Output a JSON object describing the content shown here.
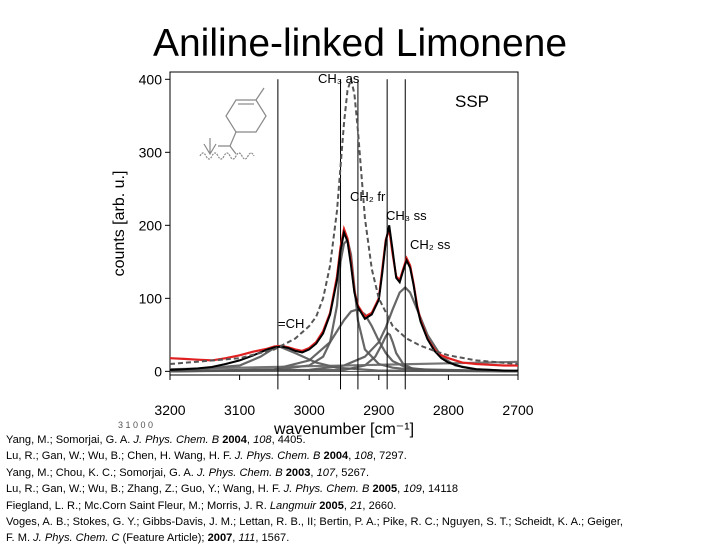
{
  "slide": {
    "title": "Aniline-linked Limonene",
    "polarization_label": "SSP",
    "stray_text": "3 1 0 0 0"
  },
  "chart_data": {
    "type": "line",
    "title": "",
    "xlabel": "wavenumber [cm⁻¹]",
    "ylabel": "counts [arb. u.]",
    "xlim": [
      3200,
      2700
    ],
    "ylim": [
      -5,
      410
    ],
    "x_reversed": true,
    "grid": false,
    "x_ticks": [
      3200,
      3100,
      3000,
      2900,
      2800,
      2700
    ],
    "y_ticks": [
      0,
      100,
      200,
      300,
      400
    ],
    "colors": {
      "data": "#e02020",
      "fit": "#000000",
      "components": "#555555",
      "nonresonant": "#666666",
      "marker_lines": "#000000"
    },
    "peaks": [
      {
        "label": "=CH",
        "position": 3045,
        "amplitude": 35,
        "width": 35
      },
      {
        "label": "CH2 fr",
        "position": 2945,
        "amplitude": 180,
        "width": 14
      },
      {
        "label": "CH3 as",
        "position": 2940,
        "amplitude": 400,
        "width": 22
      },
      {
        "label": "CH3 ss",
        "position": 2885,
        "amplitude": 170,
        "width": 7
      },
      {
        "label": "CH2 ss",
        "position": 2860,
        "amplitude": 148,
        "width": 14
      }
    ],
    "annotations": [
      {
        "text": "CH₃ as",
        "x": 2940
      },
      {
        "text": "CH₂ fr",
        "x": 2945
      },
      {
        "text": "CH₃ ss",
        "x": 2885
      },
      {
        "text": "CH₂ ss",
        "x": 2860
      },
      {
        "text": "=CH",
        "x": 3045
      }
    ],
    "marker_lines": [
      3045,
      2955,
      2930,
      2888,
      2862
    ],
    "series": [
      {
        "role": "data",
        "x": [
          3200,
          3180,
          3160,
          3140,
          3120,
          3100,
          3080,
          3060,
          3050,
          3040,
          3030,
          3020,
          3010,
          3000,
          2990,
          2980,
          2970,
          2960,
          2955,
          2950,
          2945,
          2940,
          2935,
          2930,
          2920,
          2910,
          2900,
          2895,
          2890,
          2885,
          2880,
          2875,
          2870,
          2865,
          2860,
          2855,
          2850,
          2845,
          2840,
          2830,
          2820,
          2810,
          2800,
          2780,
          2760,
          2740,
          2720,
          2700
        ],
        "y": [
          18,
          17,
          16,
          15,
          18,
          22,
          27,
          31,
          34,
          35,
          33,
          30,
          28,
          32,
          40,
          55,
          80,
          130,
          170,
          195,
          182,
          150,
          110,
          90,
          75,
          80,
          100,
          140,
          180,
          195,
          160,
          130,
          125,
          140,
          155,
          145,
          120,
          90,
          70,
          45,
          30,
          22,
          18,
          12,
          10,
          9,
          8,
          8
        ]
      },
      {
        "role": "fit",
        "x": [
          3200,
          3180,
          3160,
          3140,
          3120,
          3100,
          3080,
          3060,
          3050,
          3040,
          3030,
          3020,
          3010,
          3000,
          2990,
          2980,
          2970,
          2960,
          2955,
          2950,
          2945,
          2940,
          2935,
          2930,
          2920,
          2910,
          2900,
          2895,
          2890,
          2885,
          2880,
          2875,
          2870,
          2865,
          2860,
          2855,
          2850,
          2845,
          2840,
          2830,
          2820,
          2810,
          2800,
          2780,
          2760,
          2740,
          2720,
          2700
        ],
        "y": [
          2,
          3,
          4,
          6,
          10,
          15,
          22,
          30,
          33,
          34,
          32,
          28,
          26,
          30,
          38,
          52,
          78,
          125,
          165,
          190,
          178,
          145,
          108,
          88,
          72,
          78,
          98,
          135,
          178,
          200,
          165,
          128,
          122,
          138,
          152,
          142,
          118,
          88,
          68,
          44,
          28,
          18,
          12,
          6,
          3,
          2,
          1,
          1
        ]
      },
      {
        "role": "CH3 as",
        "x": [
          3200,
          3100,
          3050,
          3020,
          3000,
          2990,
          2980,
          2970,
          2960,
          2955,
          2950,
          2945,
          2940,
          2935,
          2930,
          2925,
          2920,
          2910,
          2900,
          2880,
          2860,
          2840,
          2820,
          2800,
          2760,
          2700
        ],
        "y": [
          10,
          18,
          30,
          45,
          62,
          75,
          100,
          145,
          220,
          280,
          340,
          385,
          400,
          380,
          330,
          270,
          210,
          140,
          100,
          62,
          45,
          35,
          28,
          22,
          15,
          10
        ]
      }
    ],
    "components": [
      {
        "name": "=CH",
        "x": [
          3200,
          3100,
          3070,
          3050,
          3045,
          3040,
          3020,
          2990,
          2960,
          2900,
          2700
        ],
        "y": [
          0,
          8,
          20,
          32,
          34,
          33,
          25,
          12,
          5,
          1,
          0
        ]
      },
      {
        "name": "CH2 fr",
        "x": [
          3200,
          3050,
          3000,
          2980,
          2970,
          2960,
          2955,
          2950,
          2945,
          2940,
          2935,
          2930,
          2920,
          2900,
          2880,
          2850,
          2700
        ],
        "y": [
          0,
          2,
          8,
          20,
          40,
          90,
          150,
          175,
          180,
          160,
          115,
          70,
          30,
          10,
          5,
          2,
          0
        ]
      },
      {
        "name": "CH2 3",
        "x": [
          3200,
          3050,
          3000,
          2970,
          2950,
          2940,
          2930,
          2920,
          2910,
          2900,
          2890,
          2880,
          2860,
          2820,
          2700
        ],
        "y": [
          0,
          3,
          15,
          40,
          70,
          82,
          85,
          78,
          62,
          42,
          25,
          14,
          5,
          1,
          0
        ]
      },
      {
        "name": "CH3 ss",
        "x": [
          3200,
          2950,
          2920,
          2905,
          2895,
          2890,
          2887,
          2884,
          2880,
          2875,
          2865,
          2850,
          2700
        ],
        "y": [
          0,
          2,
          8,
          20,
          38,
          48,
          52,
          50,
          40,
          25,
          10,
          3,
          0
        ]
      },
      {
        "name": "CH2 ss",
        "x": [
          3200,
          3000,
          2950,
          2920,
          2900,
          2890,
          2880,
          2870,
          2862,
          2855,
          2845,
          2830,
          2810,
          2790,
          2760,
          2700
        ],
        "y": [
          0,
          2,
          8,
          20,
          40,
          60,
          85,
          108,
          115,
          108,
          85,
          50,
          20,
          8,
          3,
          0
        ]
      },
      {
        "name": "nonresonant",
        "x": [
          3200,
          3100,
          3000,
          2900,
          2800,
          2700
        ],
        "y": [
          3,
          5,
          7,
          9,
          11,
          13
        ]
      }
    ]
  },
  "references": [
    {
      "authors": "Yang, M.; Somorjai, G. A. ",
      "journal": "J. Phys. Chem. B",
      "year": "2004",
      "volume": "108",
      "pages": "4405."
    },
    {
      "authors": "Lu, R.; Gan, W.; Wu, B.; Chen, H. Wang, H. F.  ",
      "journal": "J. Phys. Chem. B",
      "year": "2004",
      "volume": "108",
      "pages": "7297."
    },
    {
      "authors": "Yang, M.; Chou, K. C.; Somorjai, G. A. ",
      "journal": "J. Phys. Chem. B",
      "year": "2003",
      "volume": "107",
      "pages": "5267."
    },
    {
      "authors": "Lu, R.; Gan, W.; Wu, B.; Zhang, Z.; Guo, Y.; Wang, H. F. ",
      "journal": "J. Phys. Chem. B",
      "year": "2005",
      "volume": "109",
      "pages": "14118"
    },
    {
      "authors": "Fiegland, L. R.; Mc.Corn Saint Fleur, M.; Morris, J. R. ",
      "journal": "Langmuir",
      "year": "2005",
      "volume": "21",
      "pages": "2660."
    },
    {
      "authors": "Voges, A. B.; Stokes, G. Y.; Gibbs-Davis, J. M.; Lettan, R. B., II; Bertin, P. A.; Pike, R. C.; Nguyen, S. T.; Scheidt, K. A.; Geiger,",
      "journal": "",
      "year": "",
      "volume": "",
      "pages": ""
    },
    {
      "authors": "F. M. ",
      "journal": "J. Phys. Chem. C",
      "note": " (Feature Article); ",
      "year": "2007",
      "volume": "111",
      "pages": "1567."
    }
  ]
}
